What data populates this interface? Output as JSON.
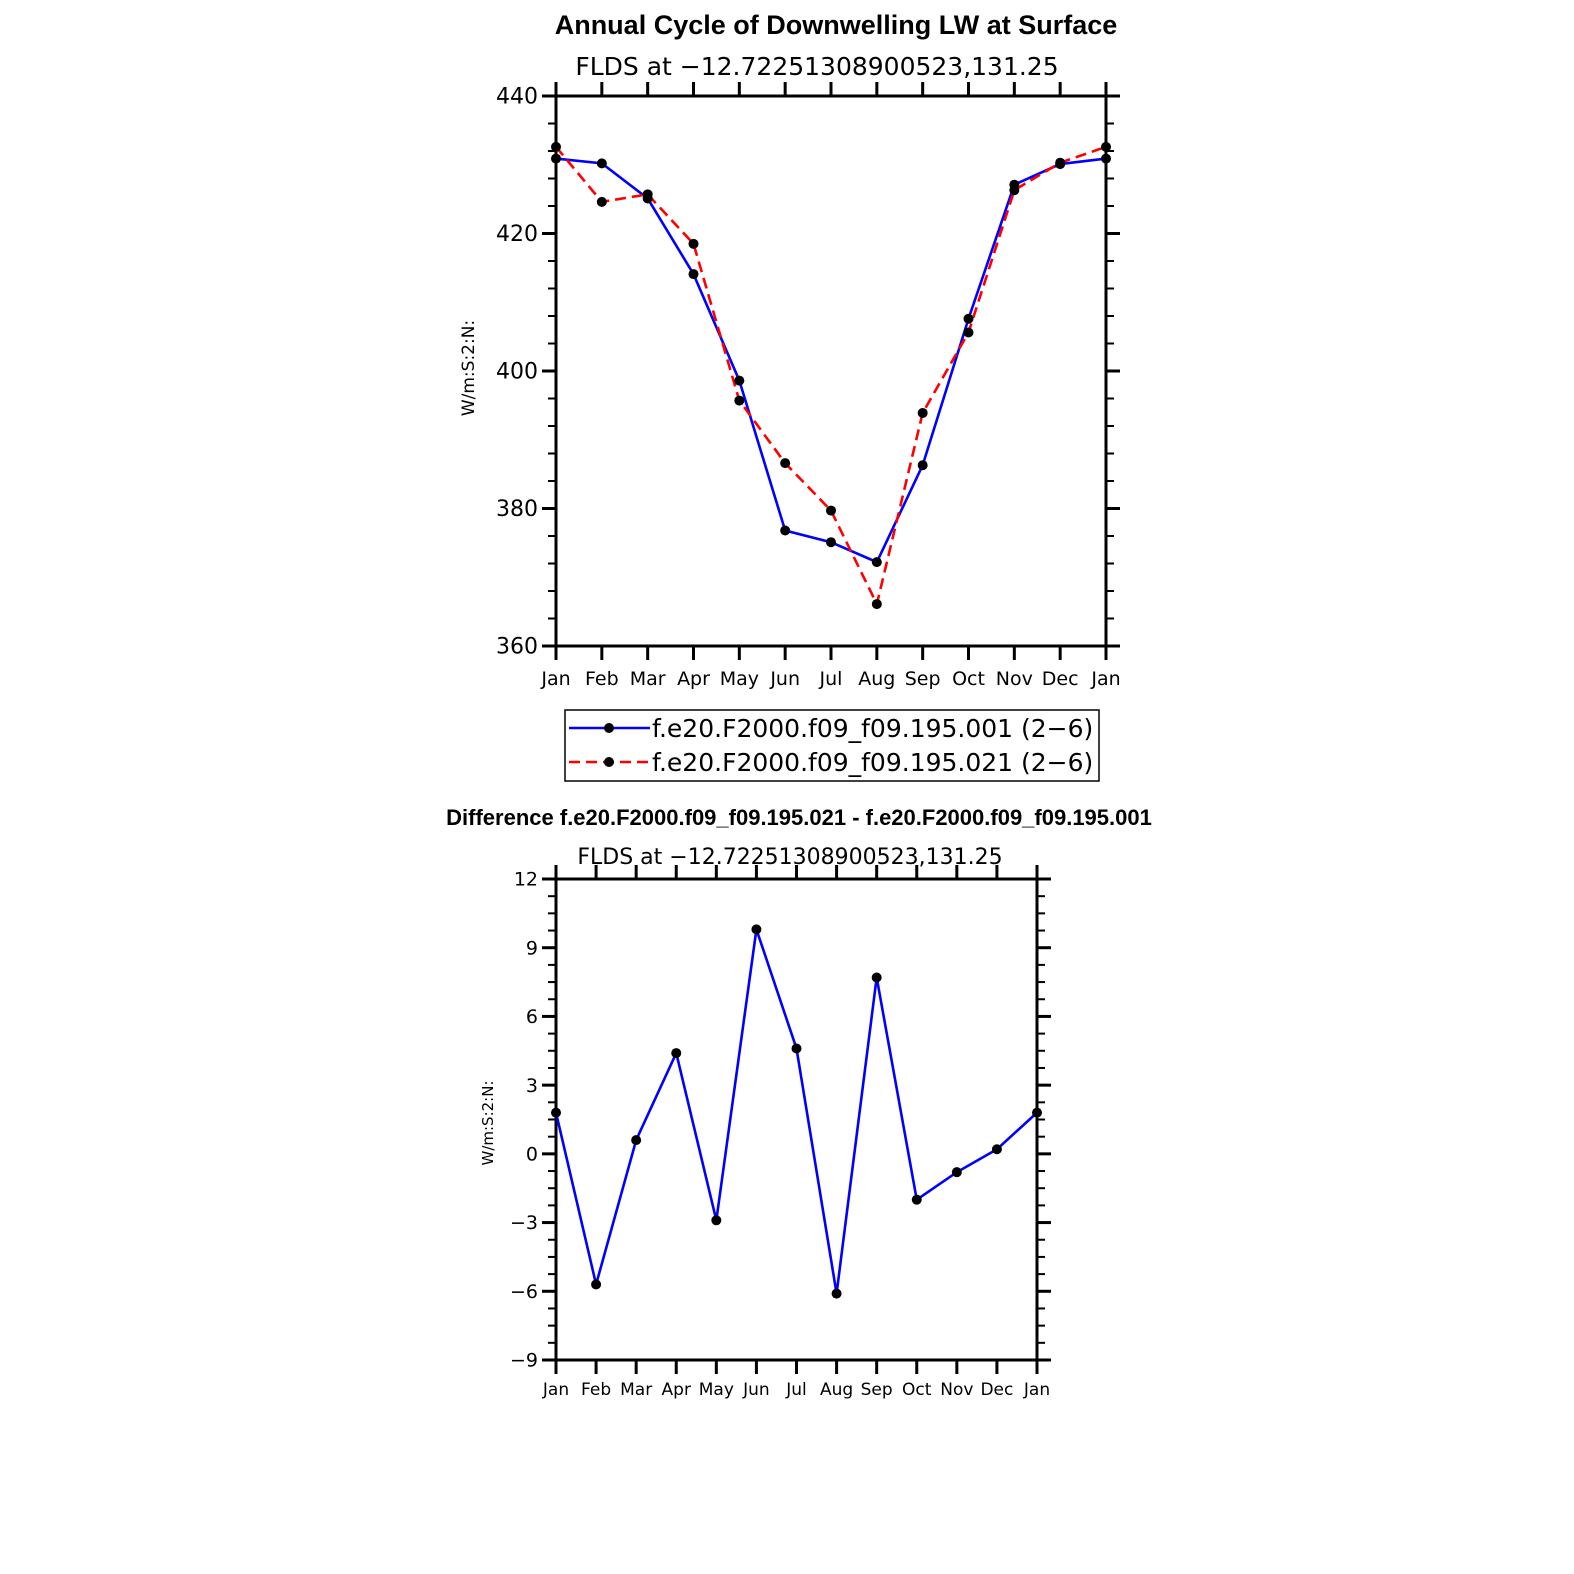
{
  "chart_data": [
    {
      "type": "line",
      "title": "Annual Cycle of Downwelling LW at Surface",
      "subtitle": "FLDS at −12.72251308900523,131.25",
      "ylabel": "W/m:S:2:N:",
      "xlabel": "",
      "categories": [
        "Jan",
        "Feb",
        "Mar",
        "Apr",
        "May",
        "Jun",
        "Jul",
        "Aug",
        "Sep",
        "Oct",
        "Nov",
        "Dec",
        "Jan"
      ],
      "ylim": [
        360,
        440
      ],
      "yticks": [
        360,
        380,
        400,
        420,
        440
      ],
      "grid": false,
      "legend_position": "bottom",
      "series": [
        {
          "name": "f.e20.F2000.f09_f09.195.001 (2−6)",
          "color": "#0000ff",
          "dash": "solid",
          "values": [
            430.9,
            430.2,
            425.1,
            414.1,
            398.6,
            376.8,
            375.1,
            372.2,
            386.3,
            407.6,
            427.1,
            430.1,
            430.9
          ]
        },
        {
          "name": "f.e20.F2000.f09_f09.195.021 (2−6)",
          "color": "#ff0000",
          "dash": "dashed",
          "values": [
            432.6,
            424.6,
            425.7,
            418.5,
            395.7,
            386.6,
            379.7,
            366.1,
            393.9,
            405.6,
            426.3,
            430.3,
            432.6
          ]
        }
      ]
    },
    {
      "type": "line",
      "title": "Difference f.e20.F2000.f09_f09.195.021 - f.e20.F2000.f09_f09.195.001",
      "subtitle": "FLDS at −12.72251308900523,131.25",
      "ylabel": "W/m:S:2:N:",
      "xlabel": "",
      "categories": [
        "Jan",
        "Feb",
        "Mar",
        "Apr",
        "May",
        "Jun",
        "Jul",
        "Aug",
        "Sep",
        "Oct",
        "Nov",
        "Dec",
        "Jan"
      ],
      "ylim": [
        -9,
        12
      ],
      "yticks": [
        -9,
        -6,
        -3,
        0,
        3,
        6,
        9,
        12
      ],
      "grid": false,
      "series": [
        {
          "color": "#0000ff",
          "dash": "solid",
          "values": [
            1.8,
            -5.7,
            0.6,
            4.4,
            -2.9,
            9.8,
            4.6,
            -6.1,
            7.7,
            -2.0,
            -0.8,
            0.2,
            1.8
          ]
        }
      ]
    }
  ]
}
